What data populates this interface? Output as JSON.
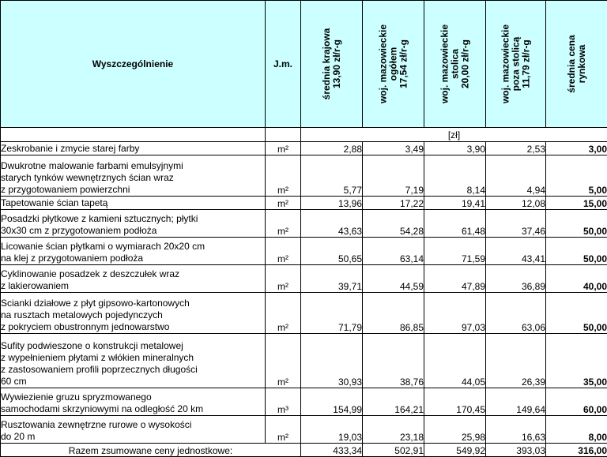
{
  "header": {
    "col_desc": "Wyszczególnienie",
    "col_jm": "J.m.",
    "col1": [
      "średnia krajowa",
      "13,90 zł/r-g"
    ],
    "col2": [
      "woj. mazowieckie",
      "ogółem",
      "17,54 zł/r-g"
    ],
    "col3": [
      "woj. mazowieckie",
      "stolica",
      "20,00 zł/r-g"
    ],
    "col4": [
      "woj. mazowieckie",
      "poza stolicą",
      "11,79 zł/r-g"
    ],
    "col5": [
      "średnia cena",
      "rynkowa"
    ],
    "unit_band": "[zł]"
  },
  "colors": {
    "header_bg": "#ccffff",
    "red": "#ff0000",
    "green": "#008000"
  },
  "rows": [
    {
      "desc": [
        "Zeskrobanie i zmycie starej  farby"
      ],
      "unit": "m²",
      "v": [
        "2,88",
        "3,49",
        "3,90",
        "2,53",
        "3,00"
      ]
    },
    {
      "desc": [
        "Dwukrotne malowanie  farbami emulsyjnymi",
        "starych tynków wewnętrznych ścian wraz",
        "z przygotowaniem powierzchni"
      ],
      "unit": "m²",
      "v": [
        "5,77",
        "7,19",
        "8,14",
        "4,94",
        "5,00"
      ]
    },
    {
      "desc": [
        "Tapetowanie ścian tapetą"
      ],
      "unit": "m²",
      "v": [
        "13,96",
        "17,22",
        "19,41",
        "12,08",
        "15,00"
      ]
    },
    {
      "desc": [
        "Posadzki płytkowe z kamieni sztucznych; płytki",
        "30x30 cm z przygotowaniem podłoża"
      ],
      "unit": "m²",
      "v": [
        "43,63",
        "54,28",
        "61,48",
        "37,46",
        "50,00"
      ]
    },
    {
      "desc": [
        "Licowanie ścian płytkami o wymiarach 20x20 cm",
        "na klej z przygotowaniem podłoża"
      ],
      "unit": "m²",
      "v": [
        "50,65",
        "63,14",
        "71,59",
        "43,41",
        "50,00"
      ]
    },
    {
      "desc": [
        "Cyklinowanie posadzek z deszczułek wraz",
        "z lakierowaniem"
      ],
      "unit": "m²",
      "v": [
        "39,71",
        "44,59",
        "47,89",
        "36,89",
        "40,00"
      ]
    },
    {
      "desc": [
        "Scianki działowe z płyt gipsowo-kartonowych",
        "na rusztach metalowych pojedynczych",
        "z pokryciem obustronnym jednowarstwo"
      ],
      "unit": "m²",
      "v": [
        "71,79",
        "86,85",
        "97,03",
        "63,06",
        "50,00"
      ]
    },
    {
      "desc": [
        "Sufity podwieszone  o konstrukcji metalowej",
        "z wypełnieniem płytami z włókien mineralnych",
        "z zastosowaniem  profili poprzecznych długości",
        "60 cm"
      ],
      "unit": "m²",
      "v": [
        "30,93",
        "38,76",
        "44,05",
        "26,39",
        "35,00"
      ]
    },
    {
      "desc": [
        "Wywiezienie gruzu spryzmowanego",
        "samochodami skrzyniowymi na odległość 20  km"
      ],
      "unit": "m³",
      "v": [
        "154,99",
        "164,21",
        "170,45",
        "149,64",
        "60,00"
      ]
    },
    {
      "desc": [
        "Rusztowania zewnętrzne rurowe o wysokości",
        "do 20 m"
      ],
      "unit": "m²",
      "v": [
        "19,03",
        "23,18",
        "25,98",
        "16,63",
        "8,00"
      ]
    }
  ],
  "total": {
    "label": "Razem zsumowane ceny jednostkowe:",
    "v": [
      "433,34",
      "502,91",
      "549,92",
      "393,03",
      "316,00"
    ]
  }
}
